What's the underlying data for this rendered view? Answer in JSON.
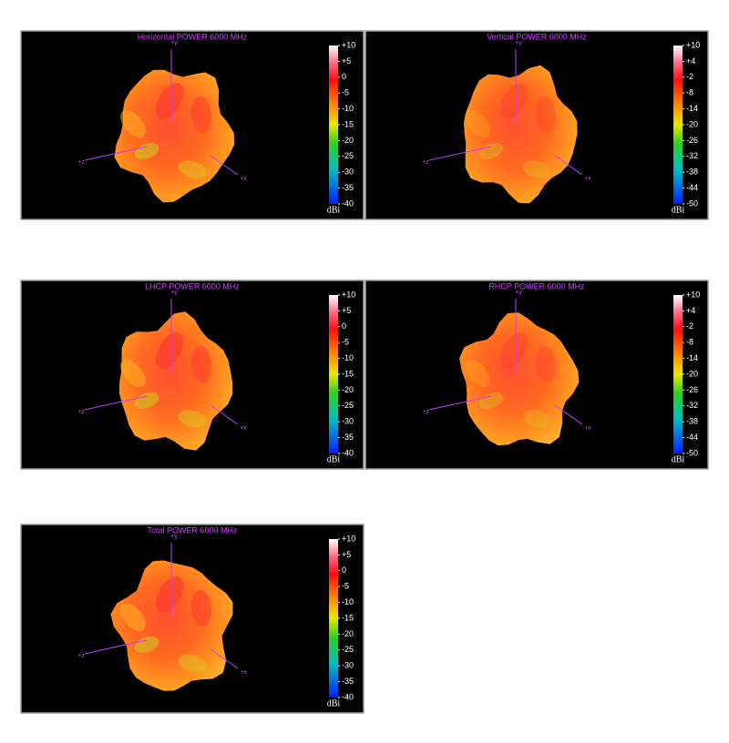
{
  "chart_data": [
    {
      "type": "surface3d",
      "title": "Horizontal POWER 6000  MHz",
      "unit": "dBi",
      "axis_labels": [
        "+y",
        "+z",
        "+x"
      ],
      "clim": [
        -40,
        10
      ],
      "cticks": [
        {
          "value": 10,
          "label": "+10"
        },
        {
          "value": 5,
          "label": "+5"
        },
        0,
        -5,
        -10,
        -15,
        -20,
        -25,
        -30,
        -35,
        -40
      ]
    },
    {
      "type": "surface3d",
      "title": "Vertical POWER 6000  MHz",
      "unit": "dBi",
      "axis_labels": [
        "+y",
        "+z",
        "+x"
      ],
      "clim": [
        -50,
        10
      ],
      "cticks": [
        {
          "value": 10,
          "label": "+10"
        },
        {
          "value": 4,
          "label": "+4"
        },
        -2,
        -8,
        -14,
        -20,
        -26,
        -32,
        -38,
        -44,
        -50
      ]
    },
    {
      "type": "surface3d",
      "title": "LHCP POWER 6000  MHz",
      "unit": "dBi",
      "axis_labels": [
        "+y",
        "+z",
        "+x"
      ],
      "clim": [
        -40,
        10
      ],
      "cticks": [
        {
          "value": 10,
          "label": "+10"
        },
        {
          "value": 5,
          "label": "+5"
        },
        0,
        -5,
        -10,
        -15,
        -20,
        -25,
        -30,
        -35,
        -40
      ]
    },
    {
      "type": "surface3d",
      "title": "RHCP POWER 6000  MHz",
      "unit": "dBi",
      "axis_labels": [
        "+y",
        "+z",
        "+x"
      ],
      "clim": [
        -50,
        10
      ],
      "cticks": [
        {
          "value": 10,
          "label": "+10"
        },
        {
          "value": 4,
          "label": "+4"
        },
        -2,
        -8,
        -14,
        -20,
        -26,
        -32,
        -38,
        -44,
        -50
      ]
    },
    {
      "type": "surface3d",
      "title": "Total POWER 6000  MHz",
      "unit": "dBi",
      "axis_labels": [
        "+y",
        "+z",
        "+x"
      ],
      "clim": [
        -40,
        10
      ],
      "cticks": [
        {
          "value": 10,
          "label": "+10"
        },
        {
          "value": 5,
          "label": "+5"
        },
        0,
        -5,
        -10,
        -15,
        -20,
        -25,
        -30,
        -35,
        -40
      ]
    }
  ]
}
